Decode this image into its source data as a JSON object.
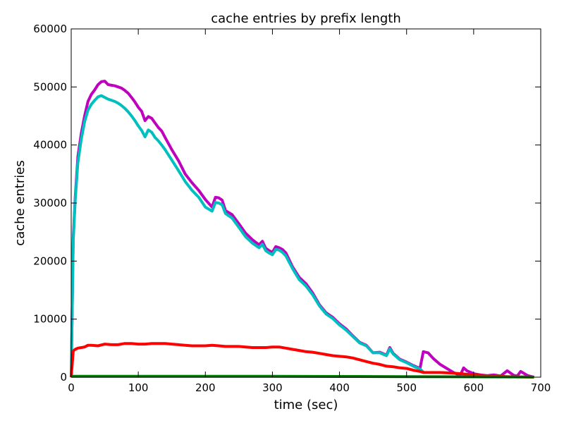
{
  "chart_data": {
    "type": "line",
    "title": "cache entries by prefix length",
    "xlabel": "time (sec)",
    "ylabel": "cache entries",
    "xlim": [
      0,
      700
    ],
    "ylim": [
      0,
      60000
    ],
    "xticks": [
      0,
      100,
      200,
      300,
      400,
      500,
      600,
      700
    ],
    "yticks": [
      0,
      10000,
      20000,
      30000,
      40000,
      50000,
      60000
    ],
    "grid": false,
    "series": [
      {
        "color": "#bf00bf",
        "x": [
          0,
          3,
          6,
          10,
          15,
          20,
          25,
          30,
          35,
          40,
          45,
          50,
          55,
          60,
          65,
          70,
          75,
          80,
          85,
          90,
          95,
          100,
          105,
          110,
          115,
          120,
          125,
          130,
          135,
          140,
          150,
          160,
          170,
          180,
          190,
          200,
          210,
          215,
          220,
          225,
          230,
          240,
          250,
          260,
          270,
          280,
          285,
          290,
          295,
          300,
          305,
          310,
          315,
          320,
          330,
          340,
          350,
          360,
          370,
          380,
          390,
          400,
          410,
          420,
          430,
          440,
          450,
          460,
          470,
          475,
          480,
          490,
          500,
          510,
          520,
          525,
          528,
          532,
          540,
          550,
          560,
          570,
          580,
          585,
          590,
          600,
          610,
          620,
          630,
          640,
          650,
          660,
          665,
          670,
          680,
          690
        ],
        "y": [
          0,
          24000,
          31000,
          38000,
          42000,
          45000,
          47500,
          48700,
          49500,
          50400,
          50900,
          51000,
          50400,
          50300,
          50200,
          50000,
          49800,
          49400,
          48900,
          48200,
          47400,
          46500,
          45800,
          44200,
          44900,
          44600,
          43800,
          43000,
          42400,
          41300,
          39200,
          37300,
          35000,
          33500,
          32200,
          30600,
          29300,
          31000,
          30900,
          30500,
          28700,
          28000,
          26400,
          24800,
          23700,
          22800,
          23400,
          22200,
          21800,
          21500,
          22500,
          22300,
          22000,
          21400,
          19000,
          17200,
          16100,
          14500,
          12500,
          11100,
          10300,
          9200,
          8300,
          7100,
          6000,
          5500,
          4200,
          4300,
          3800,
          5100,
          4100,
          3100,
          2600,
          2000,
          1500,
          4400,
          4300,
          4200,
          3200,
          2200,
          1500,
          800,
          300,
          1600,
          1100,
          600,
          400,
          250,
          400,
          200,
          1100,
          300,
          200,
          1000,
          300,
          0
        ]
      },
      {
        "color": "#00bfbf",
        "x": [
          0,
          3,
          6,
          10,
          15,
          20,
          25,
          30,
          35,
          40,
          45,
          50,
          55,
          60,
          65,
          70,
          75,
          80,
          85,
          90,
          95,
          100,
          105,
          110,
          115,
          120,
          125,
          130,
          135,
          140,
          150,
          160,
          170,
          180,
          190,
          200,
          210,
          215,
          220,
          225,
          230,
          240,
          250,
          260,
          270,
          280,
          285,
          290,
          295,
          300,
          305,
          310,
          315,
          320,
          330,
          340,
          350,
          360,
          370,
          380,
          390,
          400,
          410,
          420,
          430,
          440,
          450,
          460,
          470,
          475,
          480,
          490,
          500,
          510,
          520,
          525
        ],
        "y": [
          0,
          23500,
          30500,
          37000,
          41000,
          44000,
          46000,
          47000,
          47700,
          48300,
          48500,
          48200,
          47900,
          47700,
          47500,
          47200,
          46800,
          46300,
          45700,
          45000,
          44200,
          43300,
          42500,
          41400,
          42600,
          42200,
          41300,
          40700,
          40000,
          39200,
          37400,
          35600,
          33700,
          32200,
          31000,
          29300,
          28600,
          30100,
          30000,
          29700,
          28200,
          27400,
          25800,
          24200,
          23100,
          22300,
          22900,
          21800,
          21400,
          21100,
          22000,
          21900,
          21500,
          20900,
          18700,
          16800,
          15700,
          14200,
          12300,
          10900,
          10100,
          9000,
          8100,
          7000,
          5900,
          5400,
          4200,
          4200,
          3700,
          4900,
          4000,
          3000,
          2500,
          1900,
          1400,
          900
        ]
      },
      {
        "color": "#ff0000",
        "x": [
          0,
          3,
          6,
          10,
          15,
          20,
          25,
          30,
          40,
          50,
          60,
          70,
          80,
          90,
          100,
          110,
          120,
          130,
          140,
          150,
          160,
          170,
          180,
          190,
          200,
          210,
          220,
          230,
          240,
          250,
          260,
          270,
          280,
          290,
          300,
          310,
          320,
          330,
          340,
          350,
          360,
          370,
          380,
          390,
          400,
          410,
          420,
          430,
          440,
          450,
          460,
          470,
          480,
          490,
          500,
          510,
          520,
          525,
          530,
          550,
          570,
          590,
          610,
          630,
          650,
          670,
          690
        ],
        "y": [
          0,
          4500,
          4800,
          5000,
          5100,
          5200,
          5500,
          5500,
          5400,
          5700,
          5600,
          5600,
          5800,
          5800,
          5700,
          5700,
          5800,
          5800,
          5800,
          5700,
          5600,
          5500,
          5400,
          5400,
          5400,
          5500,
          5400,
          5300,
          5300,
          5300,
          5200,
          5100,
          5100,
          5100,
          5200,
          5200,
          5000,
          4800,
          4600,
          4400,
          4300,
          4100,
          3900,
          3700,
          3600,
          3500,
          3300,
          3000,
          2700,
          2400,
          2200,
          1900,
          1800,
          1600,
          1500,
          1200,
          1000,
          800,
          800,
          800,
          700,
          500,
          300,
          200,
          100,
          50,
          0
        ]
      },
      {
        "color": "#008000",
        "x": [
          0,
          100,
          200,
          300,
          400,
          500,
          600,
          690
        ],
        "y": [
          150,
          150,
          150,
          150,
          120,
          100,
          60,
          20
        ]
      }
    ]
  }
}
